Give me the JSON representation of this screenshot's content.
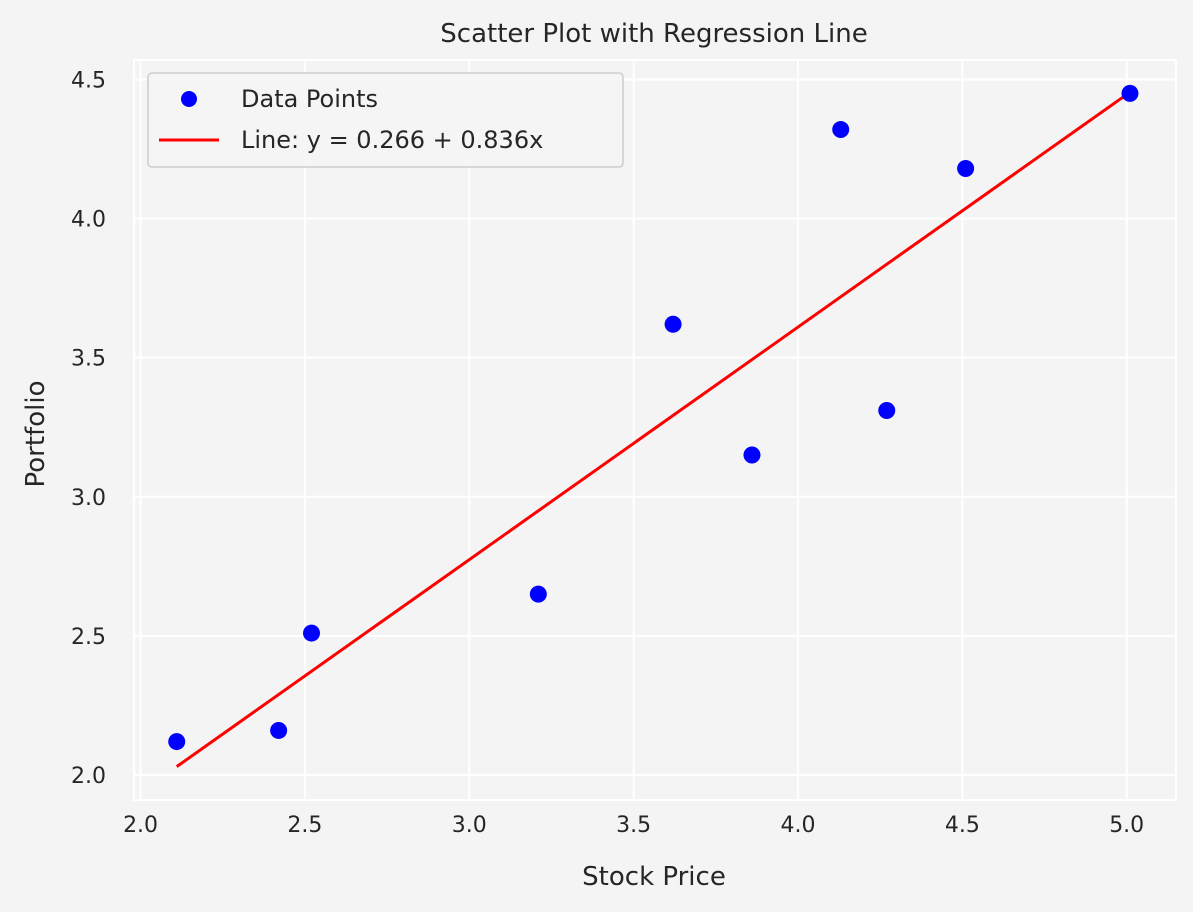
{
  "chart_data": {
    "type": "scatter",
    "title": "Scatter Plot with Regression Line",
    "xlabel": "Stock Price",
    "ylabel": "Portfolio",
    "xlim": [
      1.98,
      5.15
    ],
    "ylim": [
      1.91,
      4.57
    ],
    "x_ticks": [
      2.0,
      2.5,
      3.0,
      3.5,
      4.0,
      4.5,
      5.0
    ],
    "x_tick_labels": [
      "2.0",
      "2.5",
      "3.0",
      "3.5",
      "4.0",
      "4.5",
      "5.0"
    ],
    "y_ticks": [
      2.0,
      2.5,
      3.0,
      3.5,
      4.0,
      4.5
    ],
    "y_tick_labels": [
      "2.0",
      "2.5",
      "3.0",
      "3.5",
      "4.0",
      "4.5"
    ],
    "grid": true,
    "legend_position": "top-left",
    "series": [
      {
        "name": "Data Points",
        "kind": "scatter",
        "color": "#0000ff",
        "points": [
          {
            "x": 2.11,
            "y": 2.12
          },
          {
            "x": 2.42,
            "y": 2.16
          },
          {
            "x": 2.52,
            "y": 2.51
          },
          {
            "x": 3.21,
            "y": 2.65
          },
          {
            "x": 3.62,
            "y": 3.62
          },
          {
            "x": 3.86,
            "y": 3.15
          },
          {
            "x": 4.13,
            "y": 4.32
          },
          {
            "x": 4.27,
            "y": 3.31
          },
          {
            "x": 4.51,
            "y": 4.18
          },
          {
            "x": 5.01,
            "y": 4.45
          }
        ]
      },
      {
        "name": "Line: y = 0.266 + 0.836x",
        "kind": "line",
        "color": "#ff0000",
        "intercept": 0.266,
        "slope": 0.836,
        "x_range": [
          2.11,
          5.01
        ]
      }
    ]
  }
}
